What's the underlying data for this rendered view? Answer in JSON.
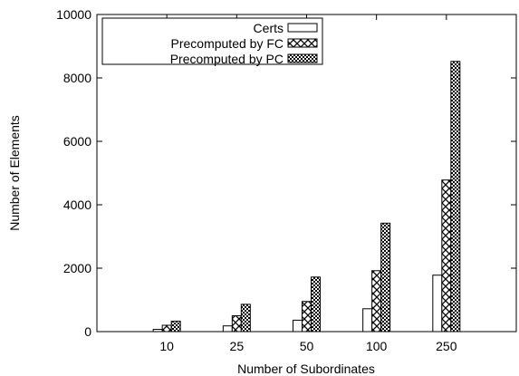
{
  "chart_data": {
    "type": "bar",
    "xlabel": "Number of Subordinates",
    "ylabel": "Number of Elements",
    "categories": [
      "10",
      "25",
      "50",
      "100",
      "250"
    ],
    "ylim": [
      0,
      10000
    ],
    "yticks": [
      0,
      2000,
      4000,
      6000,
      8000,
      10000
    ],
    "ytick_labels": [
      "0",
      "2000",
      "4000",
      "6000",
      "8000",
      "10000"
    ],
    "grid": false,
    "legend_position": "top-left",
    "series": [
      {
        "name": "Certs",
        "values": [
          70,
          180,
          360,
          720,
          1780
        ],
        "pattern": "empty"
      },
      {
        "name": "Precomputed by FC",
        "values": [
          200,
          500,
          950,
          1920,
          4780
        ],
        "pattern": "crosshatch"
      },
      {
        "name": "Precomputed by PC",
        "values": [
          330,
          860,
          1720,
          3420,
          8520
        ],
        "pattern": "dense-dots"
      }
    ]
  }
}
